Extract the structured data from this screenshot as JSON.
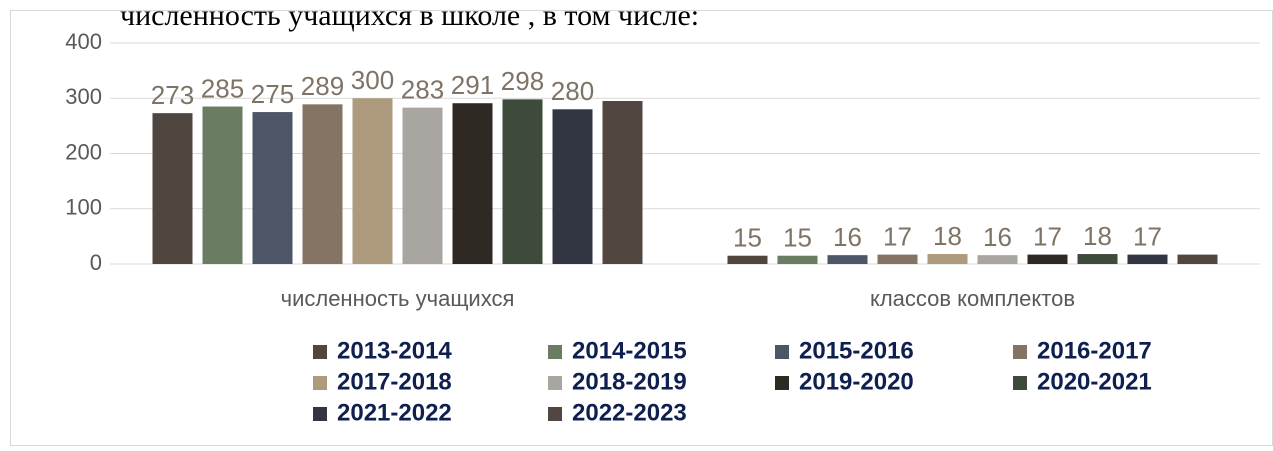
{
  "heading": "численность учащихся  в школе , в том числе:",
  "chart_data": {
    "type": "bar",
    "categories": [
      "численность учащихся",
      "классов комплектов"
    ],
    "ylim": [
      0,
      400
    ],
    "yticks": [
      0,
      100,
      200,
      300,
      400
    ],
    "grid": true,
    "legend": "bottom",
    "series": [
      {
        "name": "2013-2014",
        "color": "#4f4640",
        "values": [
          273,
          15
        ],
        "value_labels": [
          "273",
          "15"
        ]
      },
      {
        "name": "2014-2015",
        "color": "#6a7d62",
        "values": [
          285,
          15
        ],
        "value_labels": [
          "285",
          "15"
        ]
      },
      {
        "name": "2015-2016",
        "color": "#4e5566",
        "values": [
          275,
          16
        ],
        "value_labels": [
          "275",
          "16"
        ]
      },
      {
        "name": "2016-2017",
        "color": "#857463",
        "values": [
          289,
          17
        ],
        "value_labels": [
          "289",
          "17"
        ]
      },
      {
        "name": "2017-2018",
        "color": "#ae9a7c",
        "values": [
          300,
          18
        ],
        "value_labels": [
          "300",
          "18"
        ]
      },
      {
        "name": "2018-2019",
        "color": "#a9a6a2",
        "values": [
          283,
          16
        ],
        "value_labels": [
          "283",
          "16"
        ]
      },
      {
        "name": "2019-2020",
        "color": "#2f2923",
        "values": [
          291,
          17
        ],
        "value_labels": [
          "291",
          "17"
        ]
      },
      {
        "name": "2020-2021",
        "color": "#3e4a3a",
        "values": [
          298,
          18
        ],
        "value_labels": [
          "298",
          "18"
        ]
      },
      {
        "name": "2021-2022",
        "color": "#313642",
        "values": [
          280,
          17
        ],
        "value_labels": [
          "280",
          "17"
        ]
      },
      {
        "name": "2022-2023",
        "color": "#524640",
        "values": [
          295,
          17
        ]
      }
    ]
  }
}
